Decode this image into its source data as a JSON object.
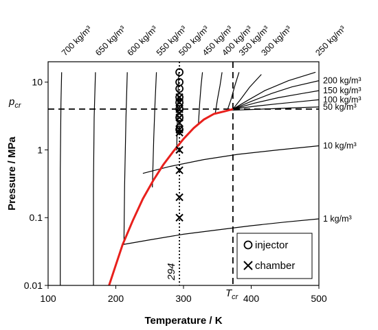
{
  "chart_data": {
    "type": "line",
    "xlabel": "Temperature / K",
    "ylabel": "Pressure / MPa",
    "xlim": [
      100,
      500
    ],
    "ylim": [
      0.01,
      20
    ],
    "yscale": "log",
    "x_ticks": [
      "100",
      "200",
      "300",
      "400",
      "500"
    ],
    "y_ticks": [
      "0.01",
      "0.1",
      "1",
      "10"
    ],
    "x_tick_values": [
      100,
      200,
      300,
      400,
      500
    ],
    "y_tick_values": [
      0.01,
      0.1,
      1,
      10
    ],
    "grid": false,
    "critical_point": {
      "T": 373,
      "p": 4.0
    },
    "labels": {
      "p_cr": "p",
      "p_cr_sub": "cr",
      "T_cr": "T",
      "T_cr_sub": "cr",
      "T_294": "294"
    },
    "reference_lines": [
      {
        "orientation": "horizontal",
        "value": 4.0,
        "style": "dashed"
      },
      {
        "orientation": "vertical",
        "value": 373,
        "style": "dashed"
      },
      {
        "orientation": "vertical",
        "value": 294,
        "style": "dotted"
      }
    ],
    "saturation_curve": {
      "color": "#e8201c",
      "points": [
        [
          190,
          0.01
        ],
        [
          200,
          0.02
        ],
        [
          210,
          0.04
        ],
        [
          225,
          0.09
        ],
        [
          240,
          0.19
        ],
        [
          255,
          0.35
        ],
        [
          270,
          0.6
        ],
        [
          285,
          0.95
        ],
        [
          300,
          1.45
        ],
        [
          315,
          2.1
        ],
        [
          330,
          2.8
        ],
        [
          345,
          3.4
        ],
        [
          360,
          3.7
        ],
        [
          373,
          4.0
        ]
      ]
    },
    "isochores": [
      {
        "label": "700 kg/m³",
        "points": [
          [
            118,
            0.01
          ],
          [
            118,
            0.5
          ],
          [
            119,
            5
          ],
          [
            120,
            14
          ]
        ]
      },
      {
        "label": "650 kg/m³",
        "points": [
          [
            167,
            0.01
          ],
          [
            167,
            0.3
          ],
          [
            168,
            3
          ],
          [
            170,
            14
          ]
        ]
      },
      {
        "label": "600 kg/m³",
        "points": [
          [
            212,
            0.04
          ],
          [
            213,
            0.3
          ],
          [
            215,
            3
          ],
          [
            217,
            14
          ]
        ]
      },
      {
        "label": "550 kg/m³",
        "points": [
          [
            254,
            0.28
          ],
          [
            256,
            1.5
          ],
          [
            258,
            5
          ],
          [
            260,
            14
          ]
        ]
      },
      {
        "label": "500 kg/m³",
        "points": [
          [
            290,
            0.98
          ],
          [
            291,
            3
          ],
          [
            292,
            7
          ],
          [
            293,
            14
          ]
        ]
      },
      {
        "label": "450 kg/m³",
        "points": [
          [
            322,
            2.4
          ],
          [
            324,
            5
          ],
          [
            326,
            9
          ],
          [
            328,
            14
          ]
        ]
      },
      {
        "label": "400 kg/m³",
        "points": [
          [
            347,
            3.5
          ],
          [
            350,
            5.5
          ],
          [
            354,
            9
          ],
          [
            357,
            14
          ]
        ]
      },
      {
        "label": "350 kg/m³",
        "points": [
          [
            365,
            3.9
          ],
          [
            370,
            5.5
          ],
          [
            376,
            9
          ],
          [
            382,
            14
          ]
        ]
      },
      {
        "label": "300 kg/m³",
        "points": [
          [
            373,
            4.0
          ],
          [
            384,
            5.5
          ],
          [
            398,
            8.5
          ],
          [
            415,
            13
          ]
        ]
      },
      {
        "label": "250 kg/m³",
        "points": [
          [
            373,
            4.0
          ],
          [
            395,
            5.4
          ],
          [
            420,
            7.5
          ],
          [
            455,
            10.5
          ],
          [
            495,
            14
          ]
        ]
      },
      {
        "label": "200 kg/m³",
        "points": [
          [
            373,
            4.0
          ],
          [
            400,
            5.2
          ],
          [
            430,
            6.8
          ],
          [
            460,
            8.5
          ],
          [
            500,
            10.5
          ]
        ]
      },
      {
        "label": "150 kg/m³",
        "points": [
          [
            373,
            4.0
          ],
          [
            405,
            4.9
          ],
          [
            440,
            5.9
          ],
          [
            475,
            6.8
          ],
          [
            500,
            7.5
          ]
        ]
      },
      {
        "label": "100 kg/m³",
        "points": [
          [
            373,
            4.0
          ],
          [
            405,
            4.4
          ],
          [
            440,
            4.8
          ],
          [
            475,
            5.2
          ],
          [
            500,
            5.5
          ]
        ]
      },
      {
        "label": "50 kg/m³",
        "points": [
          [
            370,
            3.85
          ],
          [
            400,
            3.95
          ],
          [
            430,
            4.05
          ],
          [
            470,
            4.2
          ],
          [
            500,
            4.3
          ]
        ]
      },
      {
        "label": "10 kg/m³",
        "points": [
          [
            240,
            0.45
          ],
          [
            280,
            0.57
          ],
          [
            330,
            0.72
          ],
          [
            380,
            0.86
          ],
          [
            440,
            1.0
          ],
          [
            500,
            1.15
          ]
        ]
      },
      {
        "label": "1 kg/m³",
        "points": [
          [
            210,
            0.04
          ],
          [
            250,
            0.047
          ],
          [
            300,
            0.057
          ],
          [
            350,
            0.066
          ],
          [
            400,
            0.076
          ],
          [
            450,
            0.086
          ],
          [
            500,
            0.096
          ]
        ]
      }
    ],
    "series": [
      {
        "name": "injector",
        "marker": "circle",
        "x": [
          294,
          294,
          294,
          294,
          294,
          294,
          294,
          294
        ],
        "y": [
          14,
          10,
          8,
          6,
          5,
          4,
          3,
          2
        ]
      },
      {
        "name": "chamber",
        "marker": "x",
        "x": [
          294,
          294,
          294,
          294,
          294,
          294,
          294,
          294,
          294,
          294,
          294,
          294
        ],
        "y": [
          6,
          5,
          4,
          3.5,
          3,
          2.5,
          2,
          1.8,
          1,
          0.5,
          0.2,
          0.1
        ]
      }
    ],
    "legend": {
      "placement": "bottom-right",
      "entries": [
        "injector",
        "chamber"
      ]
    }
  }
}
